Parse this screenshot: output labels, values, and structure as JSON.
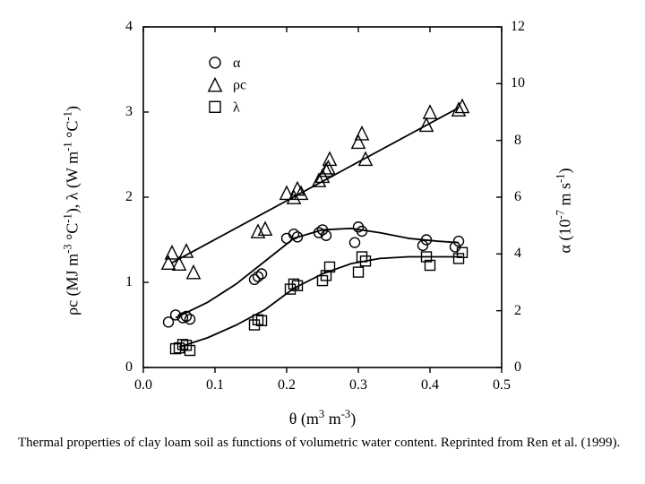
{
  "caption": "Thermal properties of clay loam soil as functions of volumetric water content.  Reprinted from Ren et al. (1999).",
  "chart": {
    "type": "scatter-line",
    "background_color": "#ffffff",
    "axis_color": "#000000",
    "tick_len": 6,
    "line_width": 1.6,
    "font_family": "Times New Roman",
    "tick_fontsize": 16,
    "label_fontsize": 18,
    "x": {
      "label_html": "θ (m<sup>3</sup> m<sup>-3</sup>)",
      "lim": [
        0.0,
        0.5
      ],
      "ticks": [
        0.0,
        0.1,
        0.2,
        0.3,
        0.4,
        0.5
      ],
      "tick_labels": [
        "0.0",
        "0.1",
        "0.2",
        "0.3",
        "0.4",
        "0.5"
      ]
    },
    "y_left": {
      "label_html": "ρc (MJ m<sup>-3</sup> °C<sup>-1</sup>), λ (W m<sup>-1</sup> °C<sup>-1</sup>)",
      "lim": [
        0,
        4
      ],
      "ticks": [
        0,
        1,
        2,
        3,
        4
      ],
      "tick_labels": [
        "0",
        "1",
        "2",
        "3",
        "4"
      ]
    },
    "y_right": {
      "label_html": "α (10<sup>-7</sup> m s<sup>-1</sup>)",
      "lim": [
        0,
        12
      ],
      "ticks": [
        0,
        2,
        4,
        6,
        8,
        10,
        12
      ],
      "tick_labels": [
        "0",
        "2",
        "4",
        "6",
        "8",
        "10",
        "12"
      ]
    },
    "legend": {
      "x": 0.1,
      "y_top": 3.58,
      "row_h": 0.26,
      "items": [
        {
          "marker": "circle",
          "label": "α"
        },
        {
          "marker": "triangle",
          "label": "ρc"
        },
        {
          "marker": "square",
          "label": "λ"
        }
      ]
    },
    "series": [
      {
        "name": "rho_c",
        "marker": "triangle",
        "marker_size": 6,
        "axis": "left",
        "color": "#000000",
        "points": [
          [
            0.035,
            1.23
          ],
          [
            0.04,
            1.35
          ],
          [
            0.05,
            1.22
          ],
          [
            0.06,
            1.37
          ],
          [
            0.07,
            1.12
          ],
          [
            0.16,
            1.6
          ],
          [
            0.17,
            1.63
          ],
          [
            0.2,
            2.05
          ],
          [
            0.21,
            2.0
          ],
          [
            0.215,
            2.1
          ],
          [
            0.22,
            2.05
          ],
          [
            0.245,
            2.2
          ],
          [
            0.25,
            2.25
          ],
          [
            0.255,
            2.32
          ],
          [
            0.258,
            2.35
          ],
          [
            0.26,
            2.45
          ],
          [
            0.3,
            2.65
          ],
          [
            0.305,
            2.75
          ],
          [
            0.31,
            2.45
          ],
          [
            0.395,
            2.85
          ],
          [
            0.4,
            3.0
          ],
          [
            0.44,
            3.03
          ],
          [
            0.445,
            3.07
          ]
        ],
        "line": [
          [
            0.04,
            1.23
          ],
          [
            0.44,
            3.05
          ]
        ]
      },
      {
        "name": "alpha",
        "marker": "circle",
        "marker_size": 5.5,
        "axis": "right",
        "color": "#000000",
        "points": [
          [
            0.035,
            1.6
          ],
          [
            0.045,
            1.85
          ],
          [
            0.055,
            1.75
          ],
          [
            0.06,
            1.8
          ],
          [
            0.065,
            1.7
          ],
          [
            0.155,
            3.1
          ],
          [
            0.16,
            3.2
          ],
          [
            0.165,
            3.3
          ],
          [
            0.2,
            4.55
          ],
          [
            0.21,
            4.7
          ],
          [
            0.215,
            4.6
          ],
          [
            0.245,
            4.75
          ],
          [
            0.25,
            4.85
          ],
          [
            0.255,
            4.65
          ],
          [
            0.295,
            4.4
          ],
          [
            0.3,
            4.95
          ],
          [
            0.305,
            4.8
          ],
          [
            0.39,
            4.3
          ],
          [
            0.395,
            4.5
          ],
          [
            0.435,
            4.25
          ],
          [
            0.44,
            4.45
          ]
        ],
        "line": [
          [
            0.045,
            1.75
          ],
          [
            0.09,
            2.3
          ],
          [
            0.13,
            2.95
          ],
          [
            0.17,
            3.75
          ],
          [
            0.21,
            4.55
          ],
          [
            0.25,
            4.85
          ],
          [
            0.29,
            4.9
          ],
          [
            0.33,
            4.75
          ],
          [
            0.37,
            4.55
          ],
          [
            0.41,
            4.45
          ],
          [
            0.44,
            4.4
          ]
        ]
      },
      {
        "name": "lambda",
        "marker": "square",
        "marker_size": 5.5,
        "axis": "left",
        "color": "#000000",
        "points": [
          [
            0.045,
            0.22
          ],
          [
            0.05,
            0.23
          ],
          [
            0.055,
            0.27
          ],
          [
            0.06,
            0.26
          ],
          [
            0.065,
            0.2
          ],
          [
            0.155,
            0.5
          ],
          [
            0.16,
            0.56
          ],
          [
            0.165,
            0.55
          ],
          [
            0.205,
            0.92
          ],
          [
            0.21,
            0.98
          ],
          [
            0.215,
            0.96
          ],
          [
            0.25,
            1.02
          ],
          [
            0.255,
            1.08
          ],
          [
            0.26,
            1.18
          ],
          [
            0.3,
            1.12
          ],
          [
            0.305,
            1.3
          ],
          [
            0.31,
            1.25
          ],
          [
            0.395,
            1.3
          ],
          [
            0.4,
            1.2
          ],
          [
            0.44,
            1.28
          ],
          [
            0.445,
            1.35
          ]
        ],
        "line": [
          [
            0.05,
            0.24
          ],
          [
            0.09,
            0.35
          ],
          [
            0.13,
            0.5
          ],
          [
            0.17,
            0.68
          ],
          [
            0.21,
            0.93
          ],
          [
            0.25,
            1.1
          ],
          [
            0.29,
            1.22
          ],
          [
            0.33,
            1.28
          ],
          [
            0.37,
            1.3
          ],
          [
            0.41,
            1.3
          ],
          [
            0.445,
            1.3
          ]
        ]
      }
    ]
  }
}
